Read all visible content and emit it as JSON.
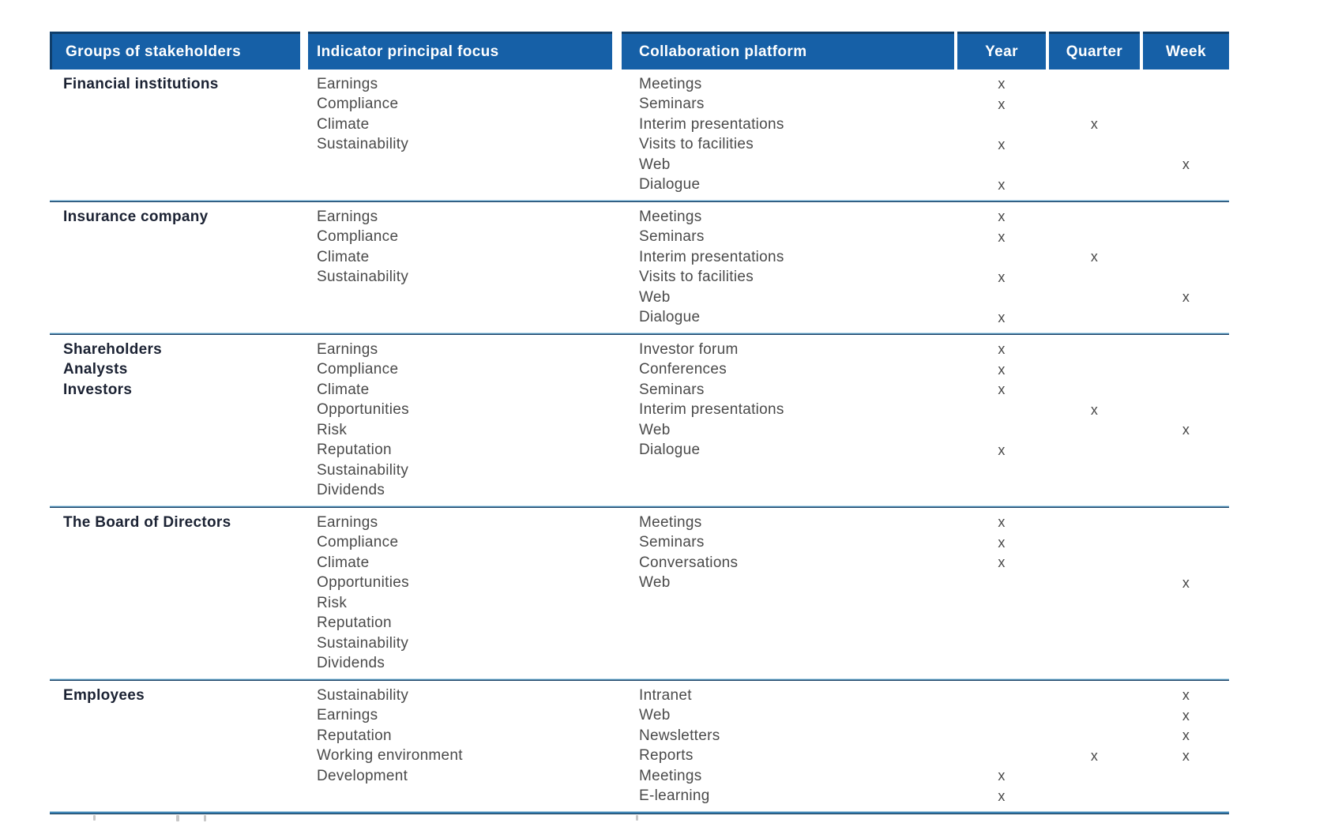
{
  "table": {
    "mark": "x",
    "headers": {
      "stakeholders": "Groups of stakeholders",
      "indicator": "Indicator principal focus",
      "platform": "Collaboration platform",
      "year": "Year",
      "quarter": "Quarter",
      "week": "Week"
    },
    "blocks": [
      {
        "group": [
          "Financial institutions"
        ],
        "indicators": [
          "Earnings",
          "Compliance",
          "Climate",
          "Sustainability"
        ],
        "rows": [
          {
            "platform": "Meetings",
            "year": "x",
            "quarter": "",
            "week": ""
          },
          {
            "platform": "Seminars",
            "year": "x",
            "quarter": "",
            "week": ""
          },
          {
            "platform": "Interim presentations",
            "year": "",
            "quarter": "x",
            "week": ""
          },
          {
            "platform": "Visits to facilities",
            "year": "x",
            "quarter": "",
            "week": ""
          },
          {
            "platform": "Web",
            "year": "",
            "quarter": "",
            "week": "x"
          },
          {
            "platform": "Dialogue",
            "year": "x",
            "quarter": "",
            "week": ""
          }
        ]
      },
      {
        "group": [
          "Insurance company"
        ],
        "indicators": [
          "Earnings",
          "Compliance",
          "Climate",
          "Sustainability"
        ],
        "rows": [
          {
            "platform": "Meetings",
            "year": "x",
            "quarter": "",
            "week": ""
          },
          {
            "platform": "Seminars",
            "year": "x",
            "quarter": "",
            "week": ""
          },
          {
            "platform": "Interim presentations",
            "year": "",
            "quarter": "x",
            "week": ""
          },
          {
            "platform": "Visits to facilities",
            "year": "x",
            "quarter": "",
            "week": ""
          },
          {
            "platform": "Web",
            "year": "",
            "quarter": "",
            "week": "x"
          },
          {
            "platform": "Dialogue",
            "year": "x",
            "quarter": "",
            "week": ""
          }
        ]
      },
      {
        "group": [
          "Shareholders",
          "Analysts",
          "Investors"
        ],
        "indicators": [
          "Earnings",
          "Compliance",
          "Climate",
          "Opportunities",
          "Risk",
          "Reputation",
          "Sustainability",
          "Dividends"
        ],
        "rows": [
          {
            "platform": "Investor forum",
            "year": "x",
            "quarter": "",
            "week": ""
          },
          {
            "platform": "Conferences",
            "year": "x",
            "quarter": "",
            "week": ""
          },
          {
            "platform": "Seminars",
            "year": "x",
            "quarter": "",
            "week": ""
          },
          {
            "platform": "Interim presentations",
            "year": "",
            "quarter": "x",
            "week": ""
          },
          {
            "platform": "Web",
            "year": "",
            "quarter": "",
            "week": "x"
          },
          {
            "platform": "Dialogue",
            "year": "x",
            "quarter": "",
            "week": ""
          }
        ]
      },
      {
        "group": [
          "The Board of Directors"
        ],
        "indicators": [
          "Earnings",
          "Compliance",
          "Climate",
          "Opportunities",
          "Risk",
          "Reputation",
          "Sustainability",
          "Dividends"
        ],
        "rows": [
          {
            "platform": "Meetings",
            "year": "x",
            "quarter": "",
            "week": ""
          },
          {
            "platform": "Seminars",
            "year": "x",
            "quarter": "",
            "week": ""
          },
          {
            "platform": "Conversations",
            "year": "x",
            "quarter": "",
            "week": ""
          },
          {
            "platform": "Web",
            "year": "",
            "quarter": "",
            "week": "x"
          }
        ]
      },
      {
        "group": [
          "Employees"
        ],
        "indicators": [
          "Sustainability",
          "Earnings",
          "Reputation",
          "Working environment",
          "Development"
        ],
        "rows": [
          {
            "platform": "Intranet",
            "year": "",
            "quarter": "",
            "week": "x"
          },
          {
            "platform": "Web",
            "year": "",
            "quarter": "",
            "week": "x"
          },
          {
            "platform": "Newsletters",
            "year": "",
            "quarter": "",
            "week": "x"
          },
          {
            "platform": "Reports",
            "year": "",
            "quarter": "x",
            "week": "x"
          },
          {
            "platform": "Meetings",
            "year": "x",
            "quarter": "",
            "week": ""
          },
          {
            "platform": "E-learning",
            "year": "x",
            "quarter": "",
            "week": ""
          }
        ]
      }
    ]
  },
  "colors": {
    "header_background": "#1660A7",
    "header_top_edge": "#0F3E6B",
    "header_text": "#FFFFFF",
    "group_text": "#1B2233",
    "body_text": "#4A4A4A",
    "divider_blue": "#4B89B0",
    "bottom_rule_blue": "#3C82B4"
  }
}
